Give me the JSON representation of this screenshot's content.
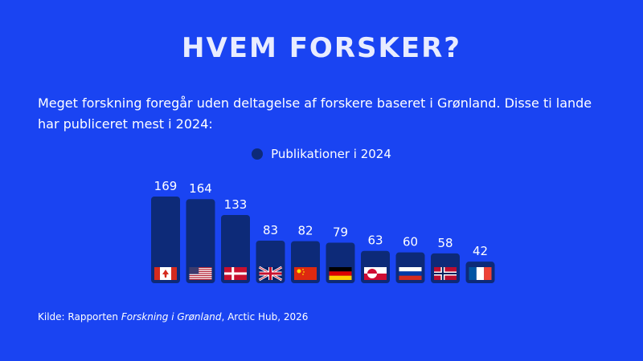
{
  "title": "HVEM FORSKER?",
  "subtitle": "Meget forskning foregår uden deltagelse af forskere baseret i Grønland. Disse ti lande har publiceret mest i 2024:",
  "source": {
    "prefix": "Kilde: Rapporten ",
    "report": "Forskning i Grønland",
    "suffix": ", Arctic Hub, 2026"
  },
  "colors": {
    "background": "#1a44f2",
    "bar": "#0d2a78",
    "text": "#ffffff"
  },
  "chart_data": {
    "type": "bar",
    "title": "",
    "xlabel": "",
    "ylabel": "",
    "legend_position": "top-center",
    "grid": false,
    "ylim": [
      0,
      169
    ],
    "categories": [
      "Canada",
      "USA",
      "Danmark",
      "Storbritannien",
      "Kina",
      "Tyskland",
      "Grønland",
      "Rusland",
      "Norge",
      "Frankrig"
    ],
    "flag_icons": [
      "canada-flag-icon",
      "usa-flag-icon",
      "denmark-flag-icon",
      "uk-flag-icon",
      "china-flag-icon",
      "germany-flag-icon",
      "greenland-flag-icon",
      "russia-flag-icon",
      "norway-flag-icon",
      "france-flag-icon"
    ],
    "series": [
      {
        "name": "Publikationer i 2024",
        "values": [
          169,
          164,
          133,
          83,
          82,
          79,
          63,
          60,
          58,
          42
        ]
      }
    ]
  }
}
